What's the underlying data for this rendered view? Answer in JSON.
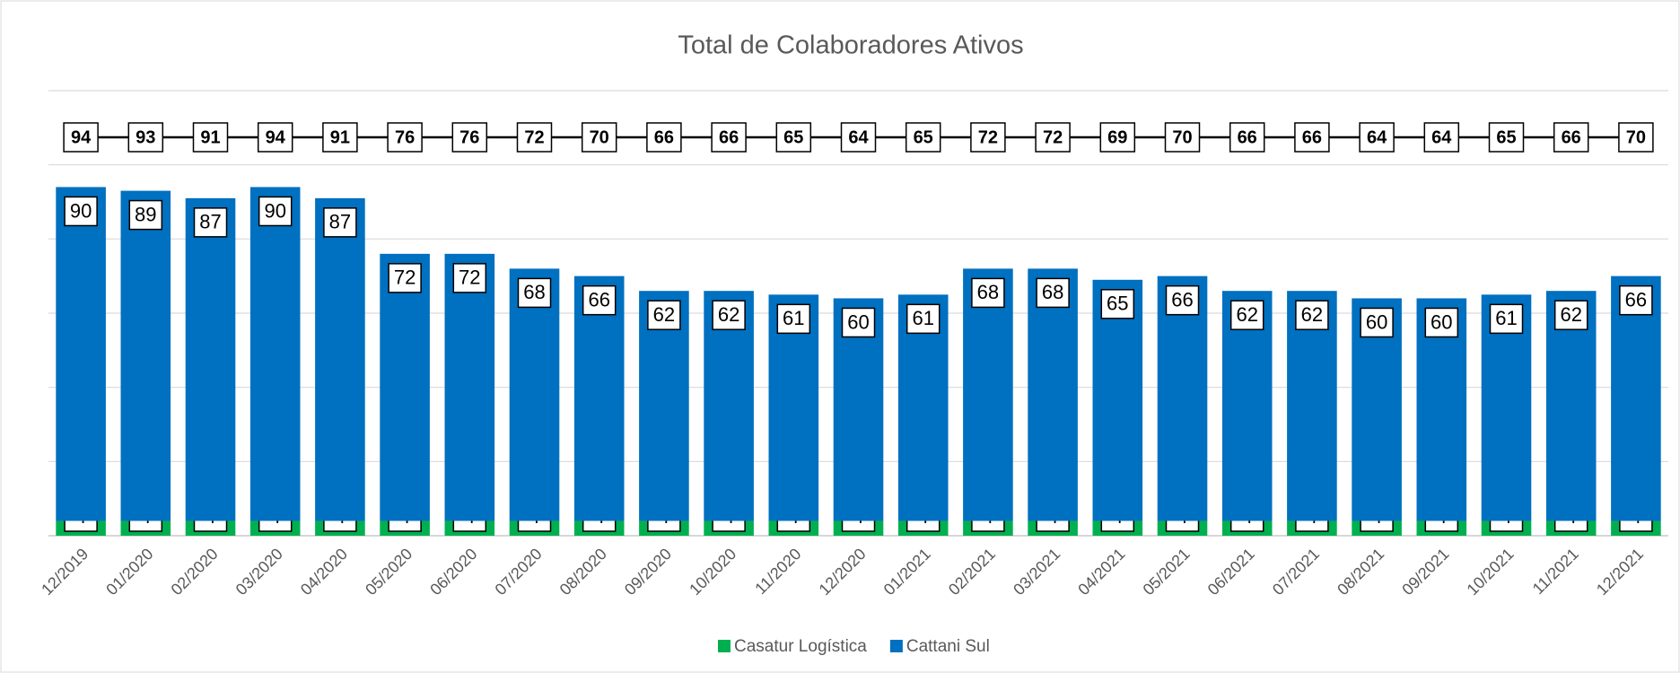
{
  "chart_data": {
    "type": "stacked_bar",
    "title": "Total de Colaboradores Ativos",
    "categories": [
      "12/2019",
      "01/2020",
      "02/2020",
      "03/2020",
      "04/2020",
      "05/2020",
      "06/2020",
      "07/2020",
      "08/2020",
      "09/2020",
      "10/2020",
      "11/2020",
      "12/2020",
      "01/2021",
      "02/2021",
      "03/2021",
      "04/2021",
      "05/2021",
      "06/2021",
      "07/2021",
      "08/2021",
      "09/2021",
      "10/2021",
      "11/2021",
      "12/2021"
    ],
    "series": [
      {
        "name": "Casatur Logística",
        "color": "#00b050",
        "values": [
          4,
          4,
          4,
          4,
          4,
          4,
          4,
          4,
          4,
          4,
          4,
          4,
          4,
          4,
          4,
          4,
          4,
          4,
          4,
          4,
          4,
          4,
          4,
          4,
          4
        ]
      },
      {
        "name": "Cattani Sul",
        "color": "#0070c0",
        "values": [
          90,
          89,
          87,
          90,
          87,
          72,
          72,
          68,
          66,
          62,
          62,
          61,
          60,
          61,
          68,
          68,
          65,
          66,
          62,
          62,
          60,
          60,
          61,
          62,
          66
        ]
      }
    ],
    "totals": [
      94,
      93,
      91,
      94,
      91,
      76,
      76,
      72,
      70,
      66,
      66,
      65,
      64,
      65,
      72,
      72,
      69,
      70,
      66,
      66,
      64,
      64,
      65,
      66,
      70
    ],
    "ylim": [
      0,
      120
    ],
    "yticks": [
      0,
      20,
      40,
      60,
      80,
      100,
      120
    ],
    "grid": true,
    "legend": "bottom"
  }
}
